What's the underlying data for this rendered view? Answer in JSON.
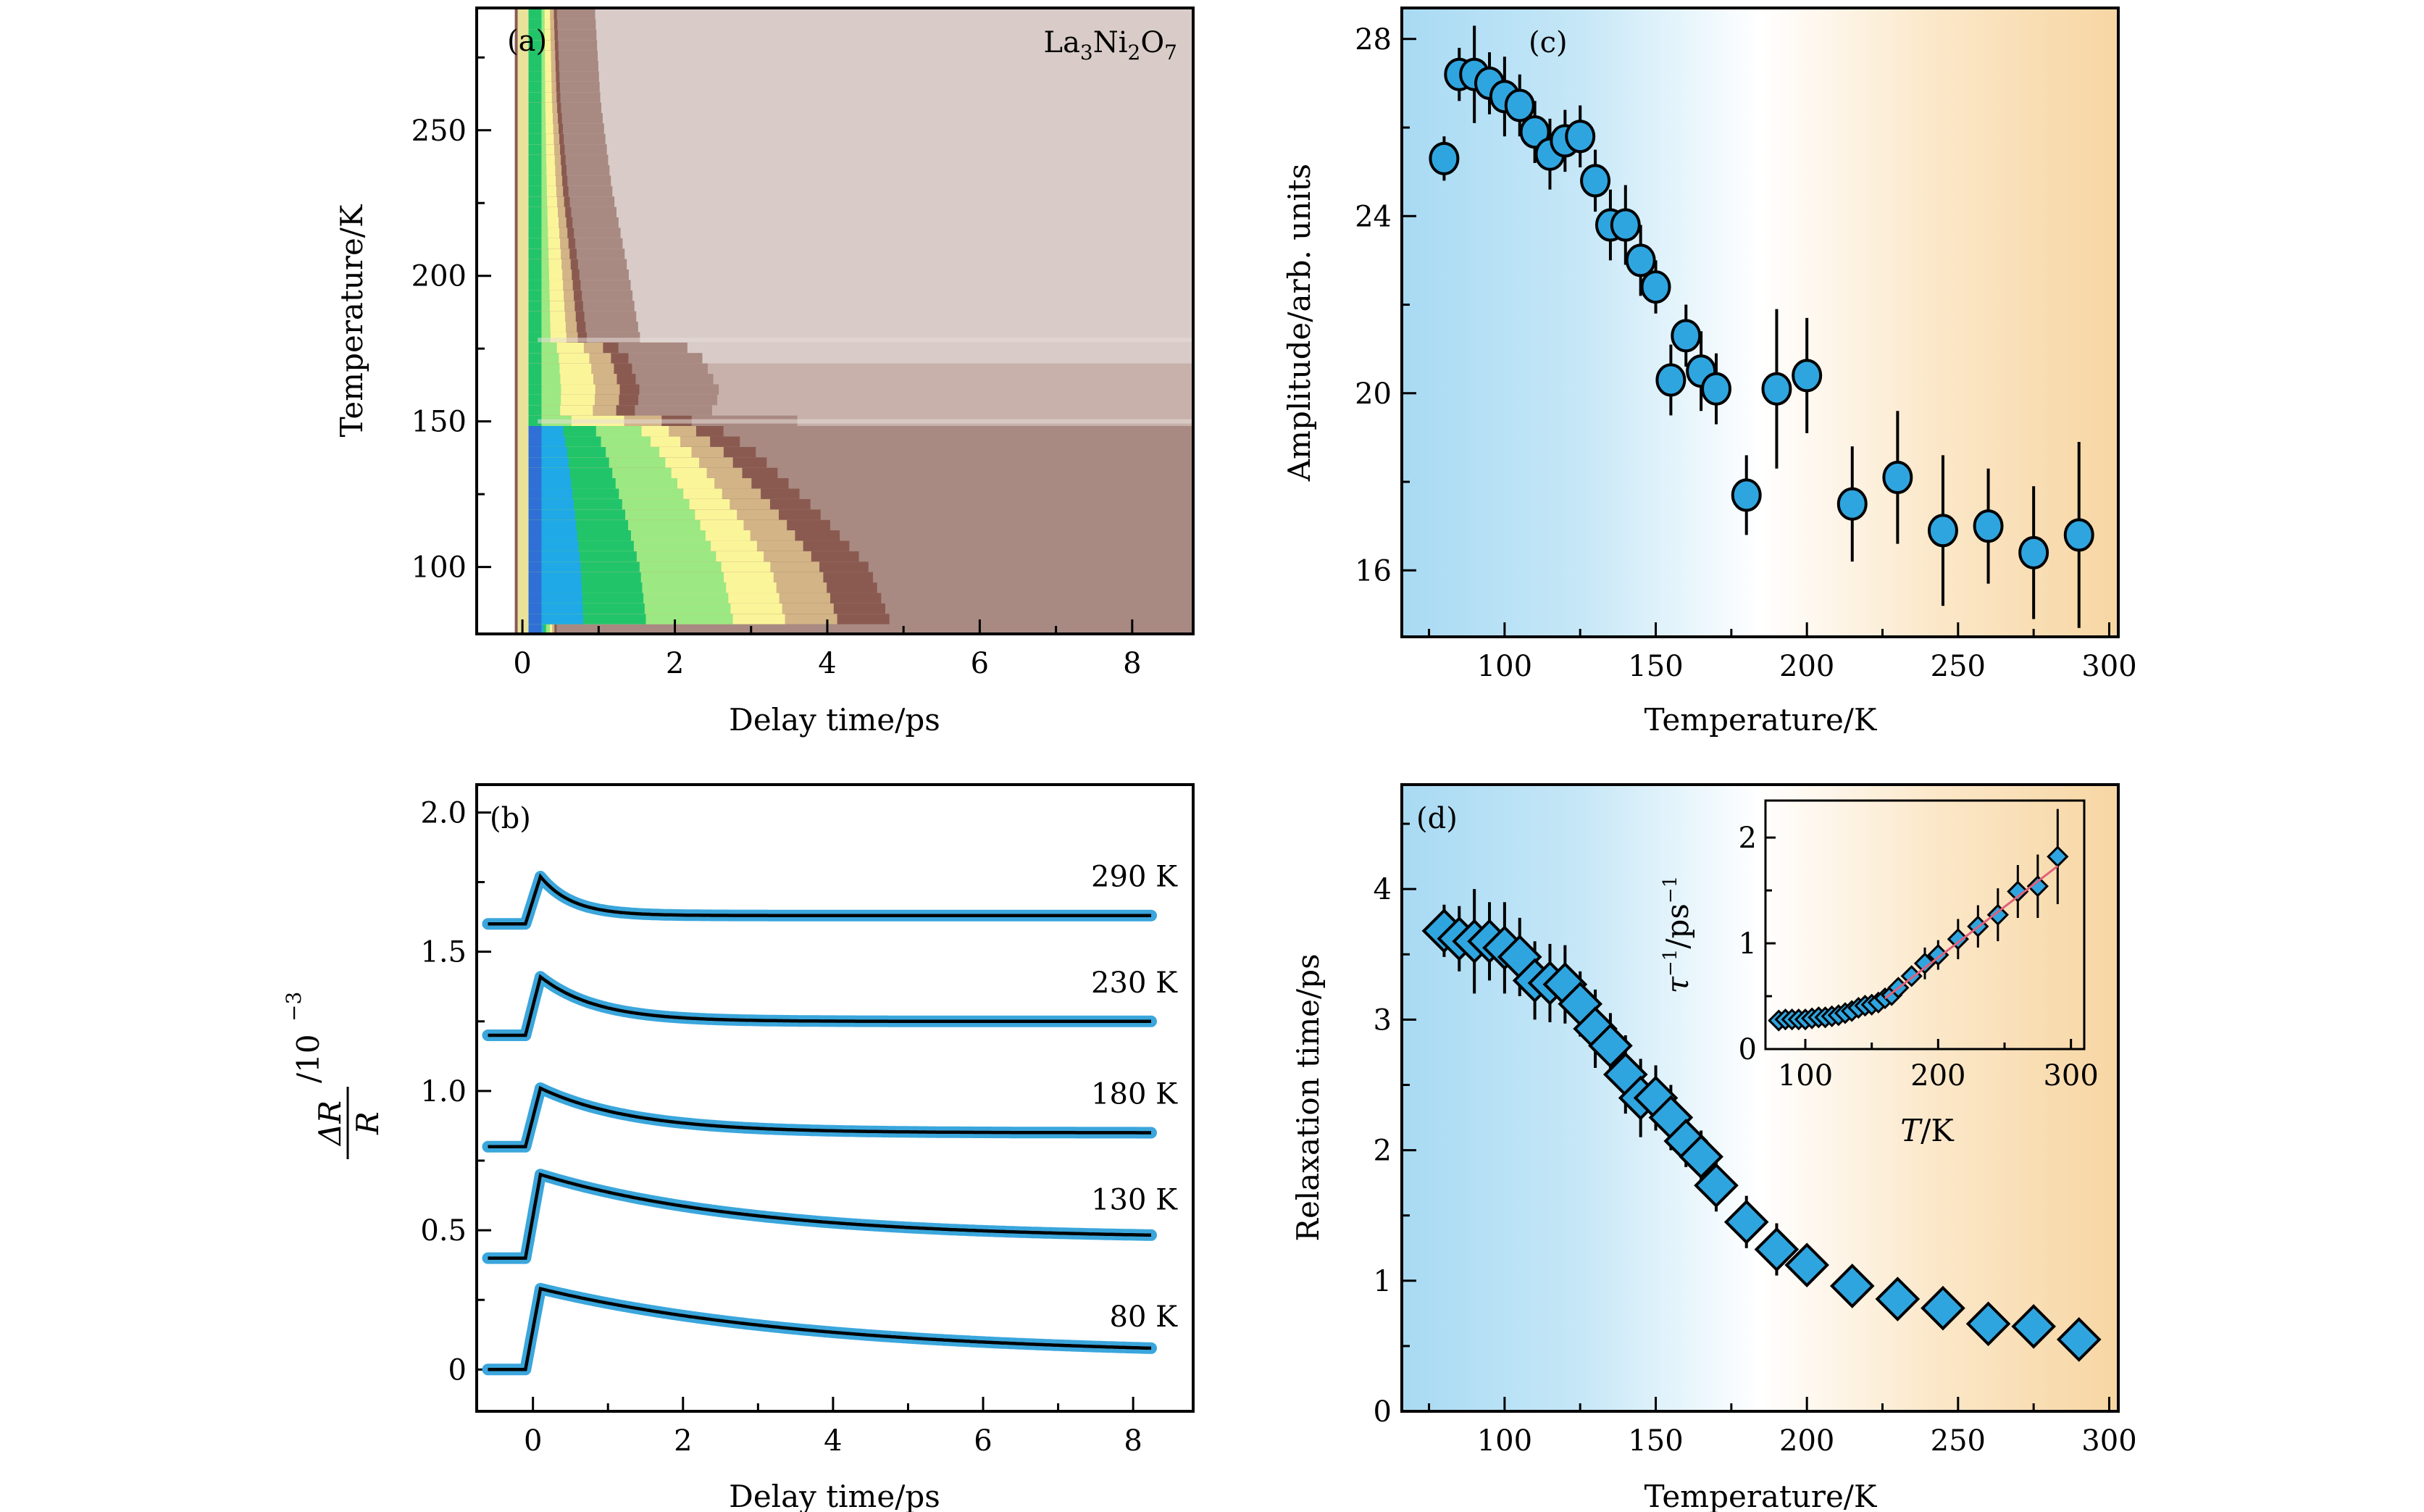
{
  "figure": {
    "panels": [
      "a",
      "b",
      "c",
      "d"
    ]
  },
  "chart_data": [
    {
      "id": "a",
      "type": "heatmap",
      "panel_label": "(a)",
      "annotation": "La3Ni2O7",
      "annotation_parts": {
        "base": [
          "La",
          "Ni",
          "O"
        ],
        "subs": [
          "3",
          "2",
          "7"
        ]
      },
      "xlabel": "Delay time/ps",
      "ylabel": "Temperature/K",
      "xlim": [
        -0.6,
        8.8
      ],
      "ylim": [
        77,
        292
      ],
      "xticks": [
        0,
        2,
        4,
        6,
        8
      ],
      "yticks": [
        100,
        150,
        200,
        250
      ],
      "colormap": [
        "#2f6fd6",
        "#1fa9e6",
        "#22c46a",
        "#9ce882",
        "#fbf59a",
        "#d2b486",
        "#8a5a50",
        "#a88a82",
        "#d8ccc8",
        "#ece6e4"
      ],
      "features": {
        "signal_front_ps_vs_T": [
          [
            80,
            4.6
          ],
          [
            100,
            4.3
          ],
          [
            120,
            3.6
          ],
          [
            140,
            2.8
          ],
          [
            150,
            2.2
          ],
          [
            152,
            1.2
          ],
          [
            160,
            1.3
          ],
          [
            175,
            1.1
          ],
          [
            178,
            0.6
          ],
          [
            200,
            0.5
          ],
          [
            230,
            0.35
          ],
          [
            260,
            0.25
          ],
          [
            292,
            0.2
          ]
        ],
        "notable_temperatures_K": [
          150,
          178
        ]
      }
    },
    {
      "id": "b",
      "type": "line",
      "panel_label": "(b)",
      "xlabel": "Delay time/ps",
      "ylabel": "ΔR/R /10^-3",
      "ylabel_parts": {
        "num": "ΔR",
        "den": "R",
        "unit": "/10",
        "exp": "−3"
      },
      "xlim": [
        -0.75,
        8.8
      ],
      "ylim": [
        -0.15,
        2.1
      ],
      "xticks": [
        0,
        2,
        4,
        6,
        8
      ],
      "yticks": [
        0,
        0.5,
        1.0,
        1.5,
        2.0
      ],
      "ytick_labels": [
        "0",
        "0.5",
        "1.0",
        "1.5",
        "2.0"
      ],
      "data_color": "#3aa6dc",
      "fit_color": "#000000",
      "series": [
        {
          "name": "290 K",
          "offset": 1.6,
          "peak": 0.17,
          "tau": 0.42,
          "plateau": 0.03
        },
        {
          "name": "230 K",
          "offset": 1.2,
          "peak": 0.21,
          "tau": 0.75,
          "plateau": 0.05
        },
        {
          "name": "180 K",
          "offset": 0.8,
          "peak": 0.21,
          "tau": 1.25,
          "plateau": 0.05
        },
        {
          "name": "130 K",
          "offset": 0.4,
          "peak": 0.3,
          "tau": 2.8,
          "plateau": 0.07
        },
        {
          "name": "80 K",
          "offset": 0.0,
          "peak": 0.29,
          "tau": 3.7,
          "plateau": 0.05
        }
      ]
    },
    {
      "id": "c",
      "type": "scatter",
      "panel_label": "(c)",
      "xlabel": "Temperature/K",
      "ylabel": "Amplitude/arb. units",
      "xlim": [
        66,
        303
      ],
      "ylim": [
        14.5,
        28.7
      ],
      "xticks": [
        100,
        150,
        200,
        250,
        300
      ],
      "yticks": [
        16,
        20,
        24,
        28
      ],
      "marker": "circle",
      "marker_color": "#2fa5e0",
      "background_gradient": [
        "#a8daf3",
        "#ffffff",
        "#f7d6a3"
      ],
      "x": [
        80,
        85,
        90,
        95,
        100,
        105,
        110,
        115,
        120,
        125,
        130,
        135,
        140,
        145,
        150,
        155,
        160,
        165,
        170,
        180,
        190,
        200,
        215,
        230,
        245,
        260,
        275,
        290
      ],
      "y": [
        25.3,
        27.2,
        27.2,
        27.0,
        26.7,
        26.5,
        25.9,
        25.4,
        25.7,
        25.8,
        24.8,
        23.8,
        23.8,
        23.0,
        22.4,
        20.3,
        21.3,
        20.5,
        20.1,
        17.7,
        20.1,
        20.4,
        17.5,
        18.1,
        16.9,
        17.0,
        16.4,
        16.8
      ],
      "yerr": [
        0.5,
        0.6,
        1.1,
        0.7,
        0.9,
        0.7,
        0.7,
        0.8,
        0.7,
        0.7,
        0.7,
        0.8,
        0.9,
        0.8,
        0.6,
        0.8,
        0.7,
        0.9,
        0.8,
        0.9,
        1.8,
        1.3,
        1.3,
        1.5,
        1.7,
        1.3,
        1.5,
        2.1
      ]
    },
    {
      "id": "d",
      "type": "scatter",
      "panel_label": "(d)",
      "xlabel": "Temperature/K",
      "ylabel": "Relaxation time/ps",
      "xlim": [
        66,
        303
      ],
      "ylim": [
        0,
        4.8
      ],
      "xticks": [
        100,
        150,
        200,
        250,
        300
      ],
      "yticks": [
        0,
        1,
        2,
        3,
        4
      ],
      "marker": "diamond",
      "marker_color": "#2fa5e0",
      "background_gradient": [
        "#a8daf3",
        "#ffffff",
        "#f7d6a3"
      ],
      "x": [
        80,
        85,
        90,
        95,
        100,
        105,
        110,
        115,
        120,
        125,
        130,
        135,
        140,
        145,
        150,
        155,
        160,
        165,
        170,
        180,
        190,
        200,
        215,
        230,
        245,
        260,
        275,
        290
      ],
      "y": [
        3.68,
        3.62,
        3.6,
        3.6,
        3.55,
        3.48,
        3.3,
        3.28,
        3.27,
        3.12,
        2.93,
        2.8,
        2.58,
        2.4,
        2.4,
        2.25,
        2.07,
        1.95,
        1.73,
        1.45,
        1.24,
        1.12,
        0.96,
        0.86,
        0.79,
        0.67,
        0.65,
        0.55
      ],
      "yerr": [
        0.2,
        0.25,
        0.4,
        0.3,
        0.35,
        0.3,
        0.3,
        0.3,
        0.3,
        0.25,
        0.3,
        0.25,
        0.3,
        0.3,
        0.25,
        0.25,
        0.2,
        0.2,
        0.2,
        0.2,
        0.2,
        0.15,
        0.15,
        0.15,
        0.15,
        0.1,
        0.1,
        0.1
      ],
      "inset": {
        "type": "scatter",
        "xlabel": "T/K",
        "ylabel": "τ^-1/ps^-1",
        "ylabel_parts": {
          "tau": "τ",
          "exp1": "−1",
          "unit": "/ps",
          "exp2": "−1"
        },
        "xlim": [
          70,
          310
        ],
        "ylim": [
          0,
          2.35
        ],
        "xticks": [
          100,
          200,
          300
        ],
        "yticks": [
          0,
          1,
          2
        ],
        "fit_color": "#e0607a",
        "fit_line": {
          "x": [
            160,
            290
          ],
          "y": [
            0.48,
            1.73
          ]
        },
        "x": [
          80,
          85,
          90,
          95,
          100,
          105,
          110,
          115,
          120,
          125,
          130,
          135,
          140,
          145,
          150,
          155,
          160,
          165,
          170,
          180,
          190,
          200,
          215,
          230,
          245,
          260,
          275,
          290
        ],
        "y": [
          0.27,
          0.28,
          0.28,
          0.28,
          0.28,
          0.29,
          0.3,
          0.3,
          0.31,
          0.32,
          0.34,
          0.36,
          0.39,
          0.41,
          0.42,
          0.44,
          0.48,
          0.51,
          0.58,
          0.69,
          0.81,
          0.89,
          1.04,
          1.16,
          1.27,
          1.49,
          1.54,
          1.82
        ],
        "yerr": [
          0,
          0,
          0,
          0,
          0,
          0,
          0,
          0,
          0,
          0,
          0,
          0,
          0,
          0,
          0,
          0,
          0,
          0,
          0,
          0.05,
          0.15,
          0.14,
          0.19,
          0.2,
          0.25,
          0.25,
          0.3,
          0.45
        ]
      }
    }
  ]
}
